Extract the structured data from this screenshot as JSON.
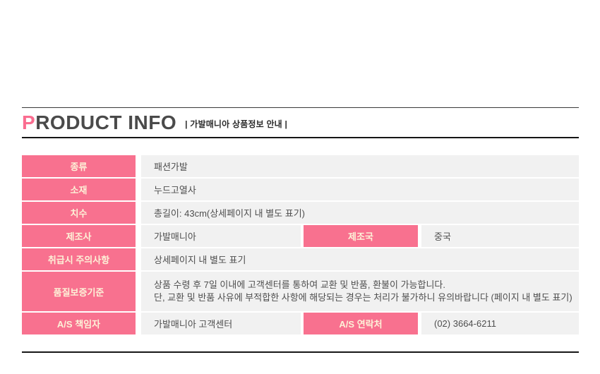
{
  "header": {
    "title_accent": "P",
    "title_rest": "RODUCT INFO",
    "subtitle": "| 가발매니아 상품정보 안내 |"
  },
  "colors": {
    "accent_pink": "#f8718f",
    "label_text": "#fdf2d8",
    "cell_bg": "#f1f1f1",
    "title_accent": "#fa6d90",
    "title_text": "#4a4a4a",
    "rule_dark": "#161616"
  },
  "table": {
    "rows": [
      {
        "label": "종류",
        "value": "패션가발"
      },
      {
        "label": "소재",
        "value": "누드고열사"
      },
      {
        "label": "치수",
        "value": "총길이: 43cm(상세페이지 내 별도 표기)"
      },
      {
        "label": "제조사",
        "value": "가발매니아",
        "label2": "제조국",
        "value2": "중국"
      },
      {
        "label": "취급시 주의사항",
        "value": "상세페이지 내 별도 표기"
      },
      {
        "label": "품질보증기준",
        "value_line1": "상품 수령 후 7일 이내에 고객센터를 통하여 교환 및 반품, 환불이 가능합니다.",
        "value_line2": "단, 교환 및 반품 사유에 부적합한 사항에 해당되는 경우는 처리가 불가하니 유의바랍니다 (페이지 내 별도 표기)"
      },
      {
        "label": "A/S 책임자",
        "value": "가발매니아 고객센터",
        "label2": "A/S 연락처",
        "value2": "(02) 3664-6211"
      }
    ]
  }
}
